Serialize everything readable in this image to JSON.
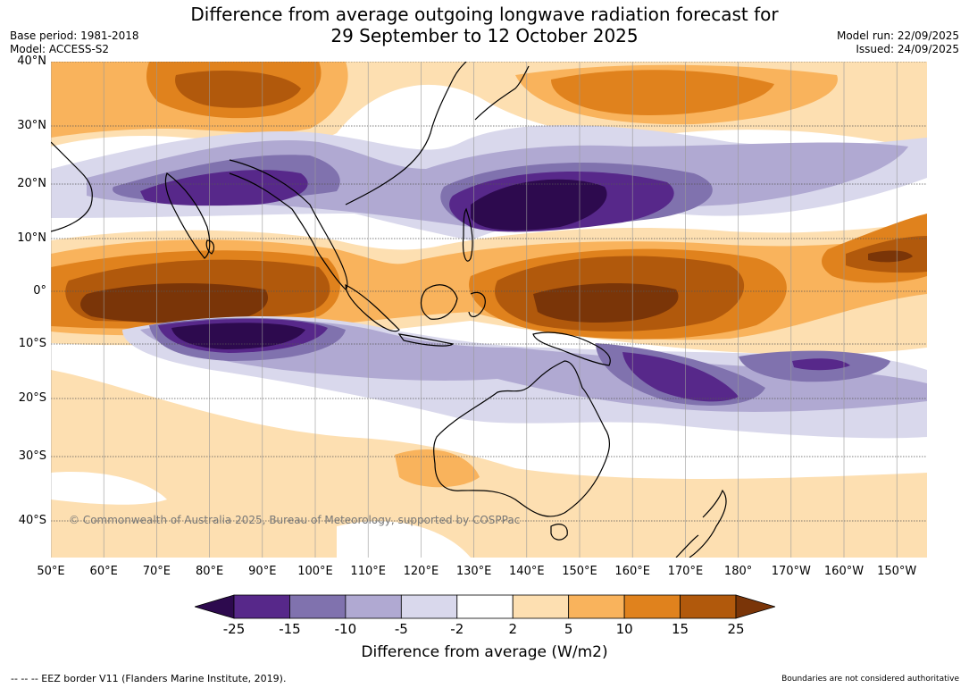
{
  "title": {
    "line1": "Difference from average outgoing longwave radiation forecast for",
    "line2": "29 September to 12 October 2025"
  },
  "meta_left": {
    "base_period": "Base period: 1981-2018",
    "model": "Model: ACCESS-S2"
  },
  "meta_right": {
    "model_run": "Model run: 22/09/2025",
    "issued": "Issued: 24/09/2025"
  },
  "lat_labels": [
    "40°N",
    "30°N",
    "20°N",
    "10°N",
    "0°",
    "10°S",
    "20°S",
    "30°S",
    "40°S"
  ],
  "lon_labels": [
    "50°E",
    "60°E",
    "70°E",
    "80°E",
    "90°E",
    "100°E",
    "110°E",
    "120°E",
    "130°E",
    "140°E",
    "150°E",
    "160°E",
    "170°E",
    "180°",
    "170°W",
    "160°W",
    "150°W"
  ],
  "copyright": "© Commonwealth of Australia 2025, Bureau of Meteorology, supported by COSPPac",
  "colorbar": {
    "title": "Difference from average (W/m2)",
    "ticks": [
      "-25",
      "-15",
      "-10",
      "-5",
      "-2",
      "2",
      "5",
      "10",
      "15",
      "25"
    ],
    "colors": {
      "lt_neg25": "#2d0a4e",
      "neg25_neg15": "#57288a",
      "neg15_neg10": "#8072ae",
      "neg10_neg5": "#b0a9d2",
      "neg5_neg2": "#d9d8ec",
      "neg2_2": "#ffffff",
      "2_5": "#fddfb1",
      "5_10": "#f9b35c",
      "10_15": "#e0821d",
      "15_25": "#b1590c",
      "gt_25": "#7a3508"
    }
  },
  "footer": {
    "eez": "--  --  -- EEZ border V11 (Flanders Marine Institute, 2019).",
    "disclaimer": "Boundaries are not considered authoritative"
  }
}
